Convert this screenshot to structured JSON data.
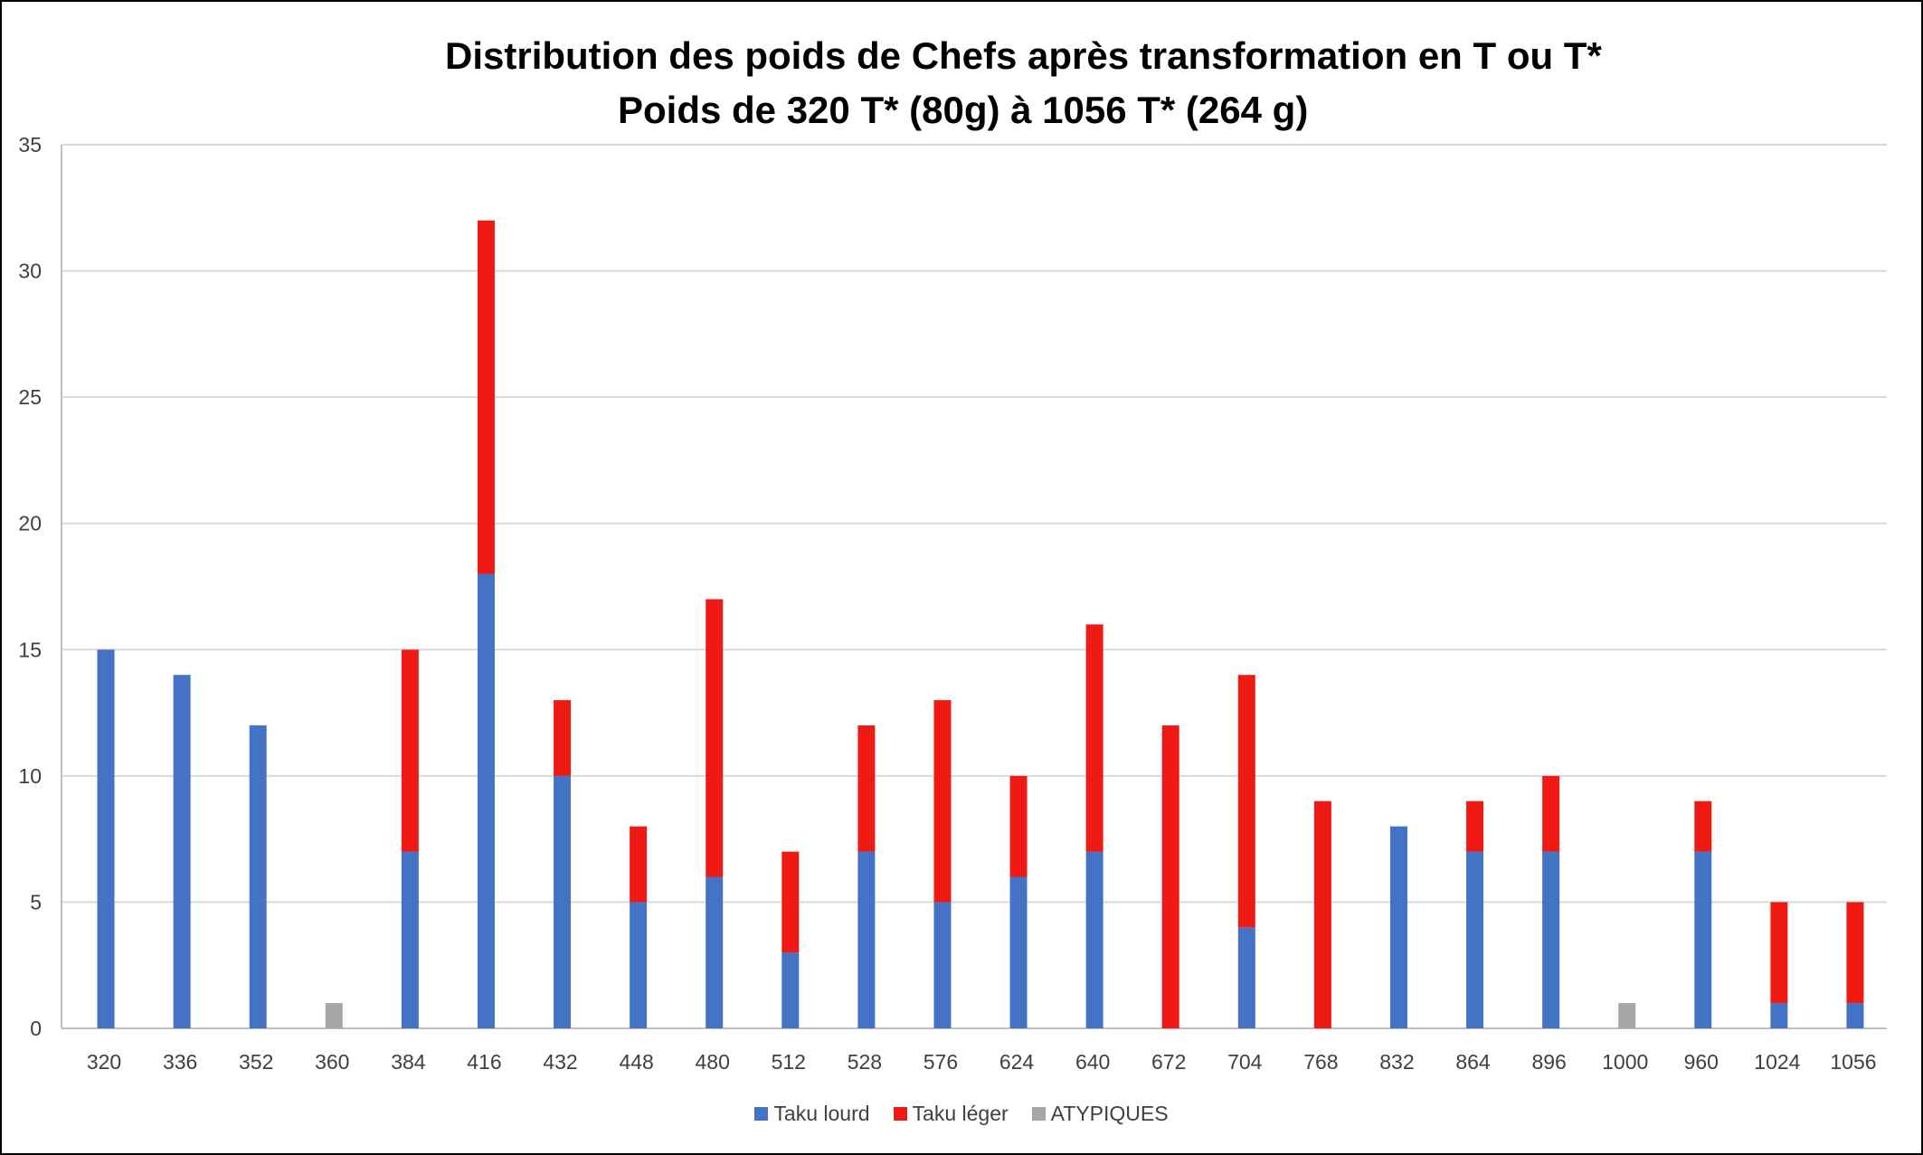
{
  "chart_data": {
    "type": "bar",
    "stacked": true,
    "title": "Distribution des poids de Chefs après transformation en T ou T*",
    "subtitle": "Poids de 320 T* (80g) à 1056 T* (264 g)",
    "xlabel": "",
    "ylabel": "",
    "ylim": [
      0,
      35
    ],
    "yticks": [
      0,
      5,
      10,
      15,
      20,
      25,
      30,
      35
    ],
    "grid": true,
    "legend_position": "bottom",
    "categories": [
      "320",
      "336",
      "352",
      "360",
      "384",
      "416",
      "432",
      "448",
      "480",
      "512",
      "528",
      "576",
      "624",
      "640",
      "672",
      "704",
      "768",
      "832",
      "864",
      "896",
      "1000",
      "960",
      "1024",
      "1056"
    ],
    "series": [
      {
        "name": "Taku lourd",
        "color": "#4472C4",
        "values": [
          15,
          14,
          12,
          0,
          7,
          18,
          10,
          5,
          6,
          3,
          7,
          5,
          6,
          7,
          0,
          4,
          0,
          8,
          7,
          7,
          0,
          7,
          1,
          1
        ]
      },
      {
        "name": "Taku léger",
        "color": "#F01A14",
        "values": [
          0,
          0,
          0,
          0,
          8,
          14,
          3,
          3,
          11,
          4,
          5,
          8,
          4,
          9,
          12,
          10,
          9,
          0,
          2,
          3,
          0,
          2,
          4,
          4
        ]
      },
      {
        "name": "ATYPIQUES",
        "color": "#A6A6A6",
        "values": [
          0,
          0,
          0,
          1,
          0,
          0,
          0,
          0,
          0,
          0,
          0,
          0,
          0,
          0,
          0,
          0,
          0,
          0,
          0,
          0,
          1,
          0,
          0,
          0
        ]
      }
    ]
  }
}
